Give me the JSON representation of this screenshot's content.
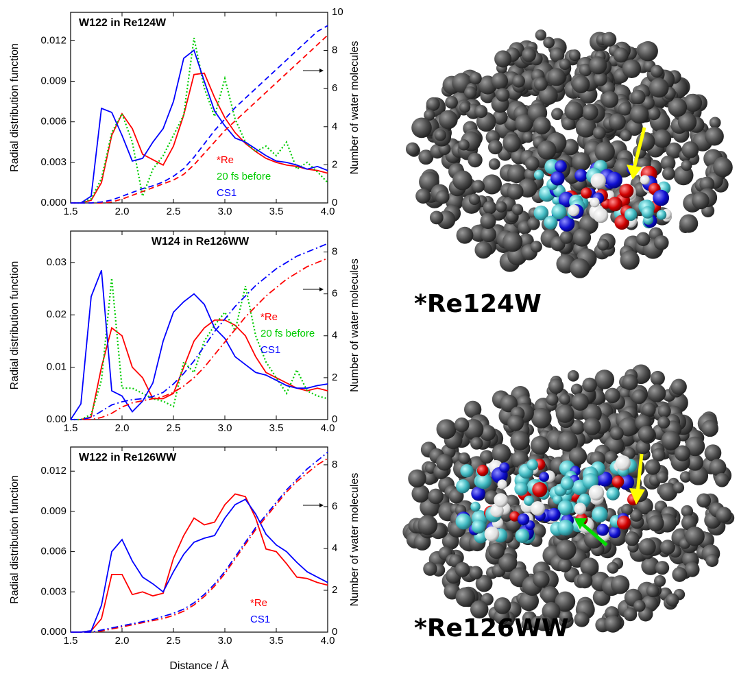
{
  "chart_data": [
    {
      "type": "line",
      "title": "W122 in Re124W",
      "ylabel": "Radial distribution function",
      "y2label": "Number of water molecules",
      "x": [
        1.5,
        1.6,
        1.7,
        1.8,
        1.9,
        2.0,
        2.1,
        2.2,
        2.3,
        2.4,
        2.5,
        2.6,
        2.7,
        2.8,
        2.9,
        3.0,
        3.1,
        3.2,
        3.3,
        3.4,
        3.5,
        3.6,
        3.7,
        3.8,
        3.9,
        4.0
      ],
      "xlim": [
        1.5,
        4.0
      ],
      "xticks": [
        1.5,
        {
          "value": 2,
          "label": "2.0"
        },
        2.5,
        {
          "value": 3,
          "label": "3.0"
        },
        3.5,
        {
          "value": 4,
          "label": "4.0"
        }
      ],
      "ylim": [
        0,
        0.0141
      ],
      "yticks": [
        {
          "value": 0,
          "label": "0.000"
        },
        {
          "value": 0.003,
          "label": "0.003"
        },
        {
          "value": 0.006,
          "label": "0.006"
        },
        {
          "value": 0.009,
          "label": "0.009"
        },
        {
          "value": 0.012,
          "label": "0.012"
        }
      ],
      "y2lim": [
        0,
        10
      ],
      "y2ticks": [
        0,
        2,
        4,
        6,
        8,
        10
      ],
      "series": [
        {
          "name": "*Re",
          "color": "#ff0000",
          "values": [
            0,
            0,
            0.0002,
            0.0015,
            0.005,
            0.0066,
            0.0055,
            0.0036,
            0.0032,
            0.0028,
            0.0042,
            0.0065,
            0.0095,
            0.0096,
            0.0078,
            0.0063,
            0.0052,
            0.0044,
            0.0038,
            0.0033,
            0.003,
            0.0028,
            0.0027,
            0.0025,
            0.0024,
            0.0022
          ]
        },
        {
          "name": "20 fs before",
          "color": "#00cc00",
          "dash": "dot",
          "values": [
            0,
            0,
            0.0003,
            0.0018,
            0.0052,
            0.0066,
            0.0045,
            0.0005,
            0.0025,
            0.0035,
            0.005,
            0.0065,
            0.0122,
            0.0085,
            0.0064,
            0.0092,
            0.0062,
            0.0045,
            0.0038,
            0.0042,
            0.0035,
            0.0045,
            0.0025,
            0.003,
            0.0023,
            0.0015
          ]
        },
        {
          "name": "CS1",
          "color": "#0000ff",
          "values": [
            0,
            0,
            0.0005,
            0.007,
            0.0067,
            0.005,
            0.0031,
            0.0033,
            0.0045,
            0.0055,
            0.0075,
            0.0107,
            0.0113,
            0.009,
            0.0068,
            0.0057,
            0.0048,
            0.0045,
            0.004,
            0.0035,
            0.0031,
            0.003,
            0.0028,
            0.0025,
            0.0027,
            0.0024
          ]
        },
        {
          "color": "#ff0000",
          "dash": "dash",
          "axis": "y2",
          "values": [
            0,
            0,
            0,
            0,
            0.05,
            0.2,
            0.4,
            0.6,
            0.8,
            1.0,
            1.2,
            1.5,
            2.0,
            2.6,
            3.2,
            3.8,
            4.3,
            4.8,
            5.3,
            5.8,
            6.3,
            6.8,
            7.3,
            7.8,
            8.3,
            8.8
          ]
        },
        {
          "color": "#0000ff",
          "dash": "dash",
          "axis": "y2",
          "values": [
            0,
            0,
            0,
            0.05,
            0.15,
            0.35,
            0.55,
            0.75,
            0.9,
            1.1,
            1.4,
            1.8,
            2.4,
            3.1,
            3.8,
            4.4,
            5.0,
            5.5,
            6.0,
            6.5,
            7.0,
            7.5,
            8.0,
            8.5,
            9.0,
            9.3
          ]
        }
      ]
    },
    {
      "type": "line",
      "title": "W124 in Re126WW",
      "ylabel": "Radial distribution function",
      "y2label": "Number of water molecules",
      "x": [
        1.5,
        1.6,
        1.7,
        1.8,
        1.9,
        2.0,
        2.1,
        2.2,
        2.3,
        2.4,
        2.5,
        2.6,
        2.7,
        2.8,
        2.9,
        3.0,
        3.1,
        3.2,
        3.3,
        3.4,
        3.5,
        3.6,
        3.7,
        3.8,
        3.9,
        4.0
      ],
      "xlim": [
        1.5,
        4.0
      ],
      "xticks": [
        1.5,
        {
          "value": 2,
          "label": "2.0"
        },
        2.5,
        {
          "value": 3,
          "label": "3.0"
        },
        3.5,
        {
          "value": 4,
          "label": "4.0"
        }
      ],
      "ylim": [
        0,
        0.036
      ],
      "yticks": [
        {
          "value": 0,
          "label": "0.00"
        },
        {
          "value": 0.01,
          "label": "0.01"
        },
        {
          "value": 0.02,
          "label": "0.02"
        },
        {
          "value": 0.03,
          "label": "0.03"
        }
      ],
      "y2lim": [
        0,
        9
      ],
      "y2ticks": [
        0,
        2,
        4,
        6,
        8
      ],
      "series": [
        {
          "name": "*Re",
          "color": "#ff0000",
          "values": [
            0,
            0,
            0.0005,
            0.01,
            0.0175,
            0.016,
            0.01,
            0.008,
            0.004,
            0.004,
            0.005,
            0.01,
            0.015,
            0.0175,
            0.019,
            0.019,
            0.018,
            0.016,
            0.012,
            0.009,
            0.008,
            0.007,
            0.006,
            0.0055,
            0.006,
            0.0055
          ]
        },
        {
          "name": "20 fs before",
          "color": "#00cc00",
          "dash": "dot",
          "values": [
            0,
            0,
            0.001,
            0.0075,
            0.027,
            0.006,
            0.006,
            0.005,
            0.004,
            0.0035,
            0.0025,
            0.011,
            0.009,
            0.015,
            0.018,
            0.0205,
            0.017,
            0.0255,
            0.016,
            0.011,
            0.008,
            0.005,
            0.0095,
            0.0055,
            0.0045,
            0.004
          ]
        },
        {
          "name": "CS1",
          "color": "#0000ff",
          "values": [
            0,
            0.003,
            0.0235,
            0.0285,
            0.0055,
            0.0045,
            0.0015,
            0.0035,
            0.007,
            0.015,
            0.0205,
            0.0225,
            0.024,
            0.022,
            0.0175,
            0.0155,
            0.012,
            0.0105,
            0.009,
            0.0085,
            0.0075,
            0.0065,
            0.006,
            0.006,
            0.0065,
            0.0068
          ]
        },
        {
          "color": "#ff0000",
          "dash": "dashdot",
          "axis": "y2",
          "values": [
            0,
            0,
            0,
            0.1,
            0.3,
            0.6,
            0.8,
            0.9,
            1.0,
            1.1,
            1.3,
            1.6,
            2.0,
            2.5,
            3.1,
            3.7,
            4.3,
            4.9,
            5.4,
            5.9,
            6.3,
            6.7,
            7.0,
            7.3,
            7.5,
            7.7
          ]
        },
        {
          "color": "#0000ff",
          "dash": "dashdot",
          "axis": "y2",
          "values": [
            0,
            0,
            0.1,
            0.4,
            0.7,
            0.85,
            0.95,
            1.0,
            1.1,
            1.3,
            1.7,
            2.2,
            2.8,
            3.5,
            4.2,
            4.8,
            5.4,
            5.9,
            6.4,
            6.8,
            7.2,
            7.5,
            7.8,
            8.0,
            8.2,
            8.4
          ]
        }
      ]
    },
    {
      "type": "line",
      "title": "W122 in Re126WW",
      "ylabel": "Radial distribution function",
      "y2label": "Number of water molecules",
      "xlabel": "Distance / Å",
      "x": [
        1.5,
        1.6,
        1.7,
        1.8,
        1.9,
        2.0,
        2.1,
        2.2,
        2.3,
        2.4,
        2.5,
        2.6,
        2.7,
        2.8,
        2.9,
        3.0,
        3.1,
        3.2,
        3.3,
        3.4,
        3.5,
        3.6,
        3.7,
        3.8,
        3.9,
        4.0
      ],
      "xlim": [
        1.5,
        4.0
      ],
      "xticks": [
        1.5,
        {
          "value": 2,
          "label": "2.0"
        },
        2.5,
        {
          "value": 3,
          "label": "3.0"
        },
        3.5,
        {
          "value": 4,
          "label": "4.0"
        }
      ],
      "ylim": [
        0,
        0.0138
      ],
      "yticks": [
        {
          "value": 0,
          "label": "0.000"
        },
        {
          "value": 0.003,
          "label": "0.003"
        },
        {
          "value": 0.006,
          "label": "0.006"
        },
        {
          "value": 0.009,
          "label": "0.009"
        },
        {
          "value": 0.012,
          "label": "0.012"
        }
      ],
      "y2lim": [
        0,
        8.85
      ],
      "y2ticks": [
        0,
        2,
        4,
        6,
        8
      ],
      "series": [
        {
          "name": "*Re",
          "color": "#ff0000",
          "values": [
            0,
            0,
            0.0001,
            0.001,
            0.0043,
            0.0043,
            0.0028,
            0.003,
            0.0027,
            0.0029,
            0.0055,
            0.0072,
            0.0085,
            0.008,
            0.0082,
            0.0095,
            0.0103,
            0.0101,
            0.0085,
            0.0062,
            0.006,
            0.0051,
            0.0041,
            0.004,
            0.0037,
            0.0035
          ]
        },
        {
          "name": "CS1",
          "color": "#0000ff",
          "values": [
            0,
            0,
            0.0001,
            0.002,
            0.006,
            0.0069,
            0.0053,
            0.0041,
            0.0036,
            0.003,
            0.0045,
            0.0058,
            0.0067,
            0.007,
            0.0072,
            0.0085,
            0.0095,
            0.0099,
            0.0088,
            0.0073,
            0.0065,
            0.006,
            0.0052,
            0.0045,
            0.0041,
            0.0037
          ]
        },
        {
          "color": "#ff0000",
          "dash": "dashdot",
          "axis": "y2",
          "values": [
            0,
            0,
            0,
            0.05,
            0.15,
            0.25,
            0.35,
            0.45,
            0.55,
            0.65,
            0.8,
            1.0,
            1.3,
            1.7,
            2.2,
            2.8,
            3.5,
            4.2,
            4.9,
            5.5,
            6.1,
            6.7,
            7.2,
            7.6,
            8.0,
            8.3
          ]
        },
        {
          "color": "#0000ff",
          "dash": "dashdot",
          "axis": "y2",
          "values": [
            0,
            0,
            0,
            0.1,
            0.2,
            0.3,
            0.4,
            0.5,
            0.6,
            0.75,
            0.9,
            1.1,
            1.4,
            1.8,
            2.3,
            2.9,
            3.6,
            4.3,
            5.0,
            5.6,
            6.2,
            6.8,
            7.3,
            7.8,
            8.2,
            8.6
          ]
        }
      ]
    }
  ],
  "images": [
    {
      "label": "*Re124W"
    },
    {
      "label": "*Re126WW"
    }
  ]
}
